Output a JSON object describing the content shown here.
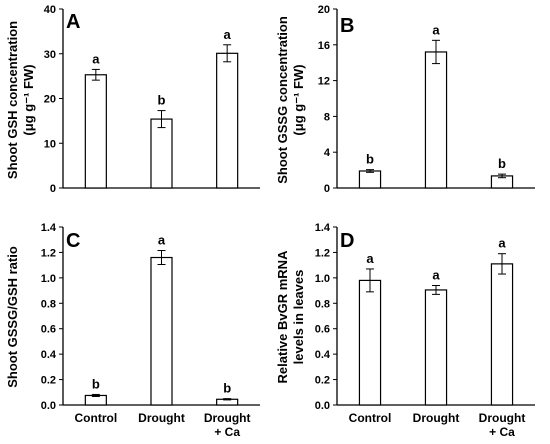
{
  "chart_data": [
    {
      "panel": "A",
      "type": "bar",
      "ylabel_lines": [
        "Shoot GSH concentration",
        "(μg g⁻¹ FW)"
      ],
      "ylim": [
        0,
        40
      ],
      "yticks": [
        0,
        10,
        20,
        30,
        40
      ],
      "ytick_labels": [
        "0",
        "10",
        "20",
        "30",
        "40"
      ],
      "categories": [
        "Control",
        "Drought",
        "Drought + Ca"
      ],
      "values": [
        25.3,
        15.4,
        30.1
      ],
      "errors": [
        1.2,
        1.9,
        1.9
      ],
      "letters": [
        "a",
        "b",
        "a"
      ]
    },
    {
      "panel": "B",
      "type": "bar",
      "ylabel_lines": [
        "Shoot GSSG concentration",
        "(μg g⁻¹ FW)"
      ],
      "ylim": [
        0,
        20
      ],
      "yticks": [
        0,
        4,
        8,
        12,
        16,
        20
      ],
      "ytick_labels": [
        "0",
        "4",
        "8",
        "12",
        "16",
        "20"
      ],
      "categories": [
        "Control",
        "Drought",
        "Drought + Ca"
      ],
      "values": [
        1.9,
        15.2,
        1.35
      ],
      "errors": [
        0.15,
        1.3,
        0.2
      ],
      "letters": [
        "b",
        "a",
        "b"
      ]
    },
    {
      "panel": "C",
      "type": "bar",
      "ylabel_lines": [
        "Shoot GSSG/GSH ratio"
      ],
      "ylim": [
        0,
        1.4
      ],
      "yticks": [
        0,
        0.2,
        0.4,
        0.6,
        0.8,
        1.0,
        1.2,
        1.4
      ],
      "ytick_labels": [
        "0.0",
        "0.2",
        "0.4",
        "0.6",
        "0.8",
        "1.0",
        "1.2",
        "1.4"
      ],
      "categories": [
        "Control",
        "Drought",
        "Drought + Ca"
      ],
      "values": [
        0.075,
        1.16,
        0.045
      ],
      "errors": [
        0.008,
        0.055,
        0.005
      ],
      "letters": [
        "b",
        "a",
        "b"
      ]
    },
    {
      "panel": "D",
      "type": "bar",
      "ylabel_lines": [
        "Relative BvGR mRNA",
        "levels in leaves"
      ],
      "ylim": [
        0,
        1.4
      ],
      "yticks": [
        0,
        0.2,
        0.4,
        0.6,
        0.8,
        1.0,
        1.2,
        1.4
      ],
      "ytick_labels": [
        "0.0",
        "0.2",
        "0.4",
        "0.6",
        "0.8",
        "1.0",
        "1.2",
        "1.4"
      ],
      "categories": [
        "Control",
        "Drought",
        "Drought + Ca"
      ],
      "values": [
        0.98,
        0.905,
        1.11
      ],
      "errors": [
        0.09,
        0.035,
        0.08
      ],
      "letters": [
        "a",
        "a",
        "a"
      ]
    }
  ],
  "xaxis_labels": [
    [
      "Control"
    ],
    [
      "Drought"
    ],
    [
      "Drought",
      "+ Ca"
    ]
  ],
  "style": {
    "bar_fill": "#ffffff",
    "stroke": "#000000"
  }
}
